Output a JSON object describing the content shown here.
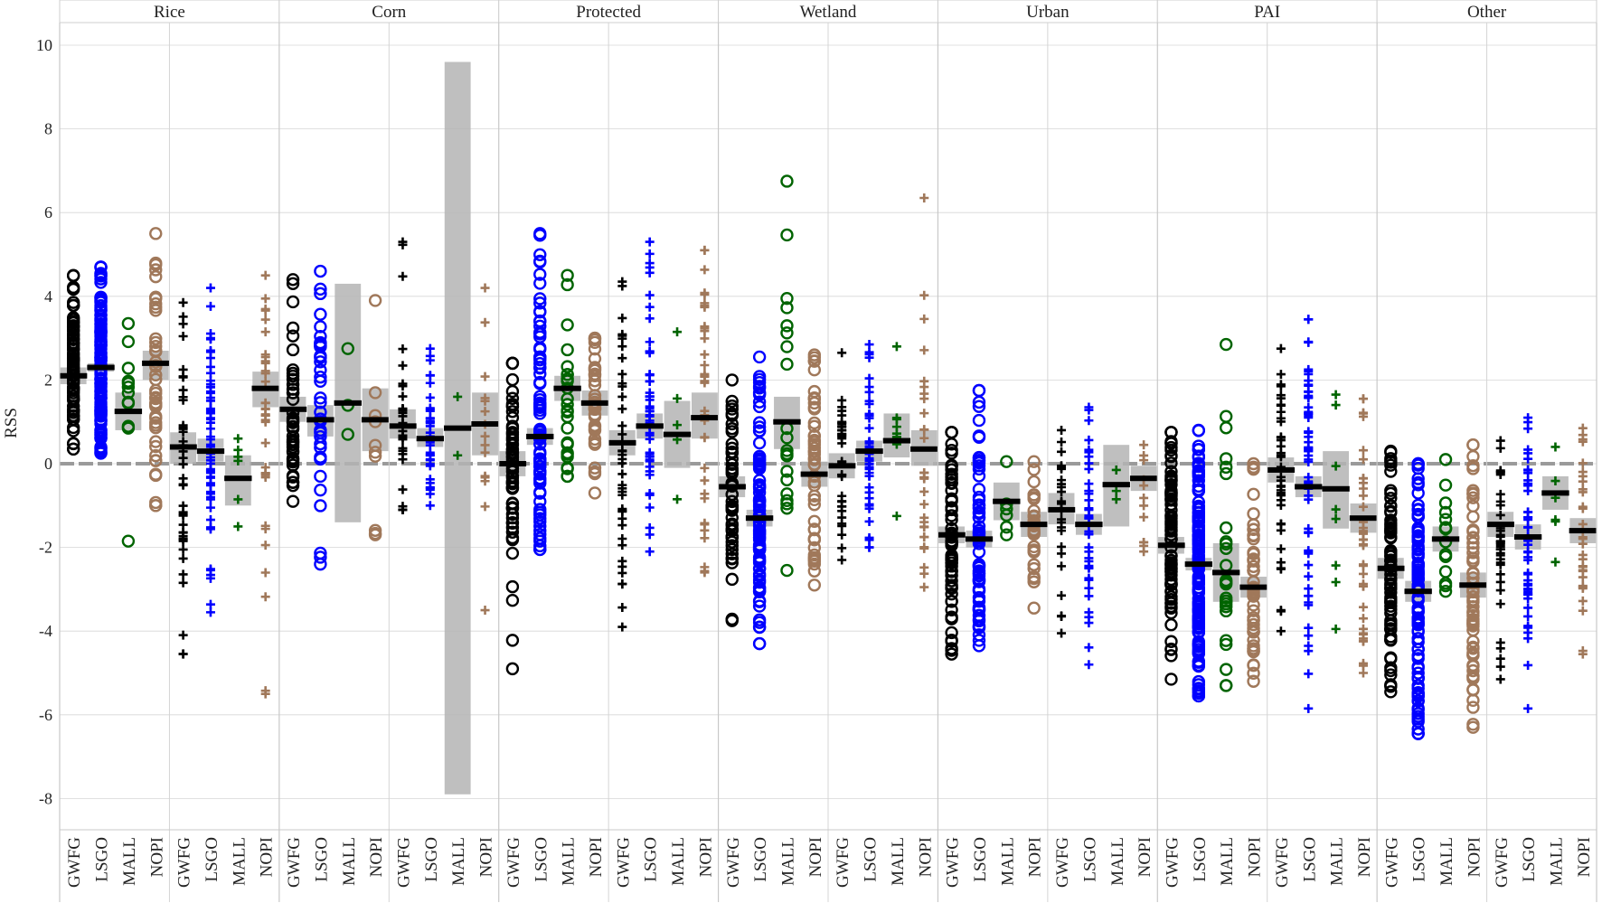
{
  "chart_data": {
    "type": "dot-strip",
    "title": "",
    "ylabel": "RSS",
    "xlabel": "",
    "ylim": [
      -8.7,
      10.3
    ],
    "yticks": [
      -8,
      -6,
      -4,
      -2,
      0,
      2,
      4,
      6,
      8,
      10
    ],
    "panels": [
      "Rice",
      "Corn",
      "Protected",
      "Wetland",
      "Urban",
      "PAI",
      "Other"
    ],
    "species": [
      "GWFG",
      "LSGO",
      "MALL",
      "NOPI"
    ],
    "marker_groups": [
      "circle",
      "plus"
    ],
    "legend": "none",
    "colors": {
      "GWFG": "#000000",
      "LSGO": "#0000ff",
      "MALL": "#006400",
      "NOPI": "#a0785a",
      "ci_band": "#b4b4b4",
      "zero_line": "#9a9a9a",
      "grid": "#d6d6d6"
    },
    "series": [
      {
        "panel": "Rice",
        "marker": "circle",
        "species": "GWFG",
        "mean": 2.1,
        "ci": [
          1.9,
          2.3
        ],
        "min": 0.35,
        "max": 4.5,
        "n": 70
      },
      {
        "panel": "Rice",
        "marker": "circle",
        "species": "LSGO",
        "mean": 2.3,
        "ci": [
          2.2,
          2.4
        ],
        "min": 0.25,
        "max": 4.7,
        "n": 110
      },
      {
        "panel": "Rice",
        "marker": "circle",
        "species": "MALL",
        "mean": 1.25,
        "ci": [
          0.8,
          1.7
        ],
        "min": -1.85,
        "max": 3.35,
        "n": 12
      },
      {
        "panel": "Rice",
        "marker": "circle",
        "species": "NOPI",
        "mean": 2.4,
        "ci": [
          2.0,
          2.7
        ],
        "min": -1.0,
        "max": 5.5,
        "n": 45
      },
      {
        "panel": "Rice",
        "marker": "plus",
        "species": "GWFG",
        "mean": 0.4,
        "ci": [
          0.0,
          0.75
        ],
        "min": -4.55,
        "max": 3.85,
        "n": 40
      },
      {
        "panel": "Rice",
        "marker": "plus",
        "species": "LSGO",
        "mean": 0.3,
        "ci": [
          0.05,
          0.6
        ],
        "min": -3.55,
        "max": 4.2,
        "n": 60
      },
      {
        "panel": "Rice",
        "marker": "plus",
        "species": "MALL",
        "mean": -0.35,
        "ci": [
          -1.0,
          0.2
        ],
        "min": -1.5,
        "max": 0.6,
        "n": 6
      },
      {
        "panel": "Rice",
        "marker": "plus",
        "species": "NOPI",
        "mean": 1.8,
        "ci": [
          1.35,
          2.2
        ],
        "min": -5.5,
        "max": 4.5,
        "n": 35
      },
      {
        "panel": "Corn",
        "marker": "circle",
        "species": "GWFG",
        "mean": 1.3,
        "ci": [
          1.0,
          1.6
        ],
        "min": -0.9,
        "max": 4.4,
        "n": 40
      },
      {
        "panel": "Corn",
        "marker": "circle",
        "species": "LSGO",
        "mean": 1.05,
        "ci": [
          0.65,
          1.4
        ],
        "min": -2.4,
        "max": 4.6,
        "n": 35
      },
      {
        "panel": "Corn",
        "marker": "circle",
        "species": "MALL",
        "mean": 1.45,
        "ci": [
          -1.4,
          4.3
        ],
        "min": 0.7,
        "max": 2.75,
        "n": 3
      },
      {
        "panel": "Corn",
        "marker": "circle",
        "species": "NOPI",
        "mean": 1.05,
        "ci": [
          0.3,
          1.8
        ],
        "min": -1.7,
        "max": 3.9,
        "n": 10
      },
      {
        "panel": "Corn",
        "marker": "plus",
        "species": "GWFG",
        "mean": 0.9,
        "ci": [
          0.6,
          1.3
        ],
        "min": -1.1,
        "max": 5.3,
        "n": 30
      },
      {
        "panel": "Corn",
        "marker": "plus",
        "species": "LSGO",
        "mean": 0.6,
        "ci": [
          0.4,
          0.85
        ],
        "min": -1.0,
        "max": 2.75,
        "n": 35
      },
      {
        "panel": "Corn",
        "marker": "plus",
        "species": "MALL",
        "mean": 0.85,
        "ci": [
          -7.9,
          9.6
        ],
        "min": 0.2,
        "max": 1.6,
        "n": 2
      },
      {
        "panel": "Corn",
        "marker": "plus",
        "species": "NOPI",
        "mean": 0.95,
        "ci": [
          0.2,
          1.7
        ],
        "min": -3.5,
        "max": 4.2,
        "n": 15
      },
      {
        "panel": "Protected",
        "marker": "circle",
        "species": "GWFG",
        "mean": 0.0,
        "ci": [
          -0.3,
          0.3
        ],
        "min": -4.9,
        "max": 2.4,
        "n": 60
      },
      {
        "panel": "Protected",
        "marker": "circle",
        "species": "LSGO",
        "mean": 0.65,
        "ci": [
          0.45,
          0.85
        ],
        "min": -2.05,
        "max": 5.5,
        "n": 80
      },
      {
        "panel": "Protected",
        "marker": "circle",
        "species": "MALL",
        "mean": 1.8,
        "ci": [
          1.5,
          2.1
        ],
        "min": -0.3,
        "max": 4.5,
        "n": 25
      },
      {
        "panel": "Protected",
        "marker": "circle",
        "species": "NOPI",
        "mean": 1.45,
        "ci": [
          1.15,
          1.75
        ],
        "min": -0.7,
        "max": 3.0,
        "n": 40
      },
      {
        "panel": "Protected",
        "marker": "plus",
        "species": "GWFG",
        "mean": 0.5,
        "ci": [
          0.2,
          0.8
        ],
        "min": -3.9,
        "max": 4.35,
        "n": 40
      },
      {
        "panel": "Protected",
        "marker": "plus",
        "species": "LSGO",
        "mean": 0.9,
        "ci": [
          0.6,
          1.2
        ],
        "min": -2.1,
        "max": 5.3,
        "n": 50
      },
      {
        "panel": "Protected",
        "marker": "plus",
        "species": "MALL",
        "mean": 0.7,
        "ci": [
          -0.1,
          1.5
        ],
        "min": -0.85,
        "max": 3.15,
        "n": 5
      },
      {
        "panel": "Protected",
        "marker": "plus",
        "species": "NOPI",
        "mean": 1.1,
        "ci": [
          0.6,
          1.7
        ],
        "min": -2.6,
        "max": 5.1,
        "n": 35
      },
      {
        "panel": "Wetland",
        "marker": "circle",
        "species": "GWFG",
        "mean": -0.55,
        "ci": [
          -0.8,
          -0.3
        ],
        "min": -3.75,
        "max": 2.0,
        "n": 55
      },
      {
        "panel": "Wetland",
        "marker": "circle",
        "species": "LSGO",
        "mean": -1.3,
        "ci": [
          -1.5,
          -1.1
        ],
        "min": -4.3,
        "max": 2.55,
        "n": 90
      },
      {
        "panel": "Wetland",
        "marker": "circle",
        "species": "MALL",
        "mean": 1.0,
        "ci": [
          0.35,
          1.6
        ],
        "min": -2.55,
        "max": 6.75,
        "n": 20
      },
      {
        "panel": "Wetland",
        "marker": "circle",
        "species": "NOPI",
        "mean": -0.25,
        "ci": [
          -0.55,
          0.05
        ],
        "min": -2.9,
        "max": 2.6,
        "n": 50
      },
      {
        "panel": "Wetland",
        "marker": "plus",
        "species": "GWFG",
        "mean": -0.05,
        "ci": [
          -0.35,
          0.25
        ],
        "min": -2.3,
        "max": 2.65,
        "n": 35
      },
      {
        "panel": "Wetland",
        "marker": "plus",
        "species": "LSGO",
        "mean": 0.3,
        "ci": [
          0.05,
          0.55
        ],
        "min": -2.0,
        "max": 2.85,
        "n": 45
      },
      {
        "panel": "Wetland",
        "marker": "plus",
        "species": "MALL",
        "mean": 0.55,
        "ci": [
          0.15,
          1.2
        ],
        "min": -1.25,
        "max": 2.8,
        "n": 8
      },
      {
        "panel": "Wetland",
        "marker": "plus",
        "species": "NOPI",
        "mean": 0.35,
        "ci": [
          -0.05,
          0.8
        ],
        "min": -2.95,
        "max": 6.35,
        "n": 30
      },
      {
        "panel": "Urban",
        "marker": "circle",
        "species": "GWFG",
        "mean": -1.7,
        "ci": [
          -1.9,
          -1.5
        ],
        "min": -4.55,
        "max": 0.75,
        "n": 60
      },
      {
        "panel": "Urban",
        "marker": "circle",
        "species": "LSGO",
        "mean": -1.8,
        "ci": [
          -2.0,
          -1.6
        ],
        "min": -4.35,
        "max": 1.75,
        "n": 70
      },
      {
        "panel": "Urban",
        "marker": "circle",
        "species": "MALL",
        "mean": -0.9,
        "ci": [
          -1.35,
          -0.45
        ],
        "min": -1.7,
        "max": 0.05,
        "n": 6
      },
      {
        "panel": "Urban",
        "marker": "circle",
        "species": "NOPI",
        "mean": -1.45,
        "ci": [
          -1.75,
          -1.15
        ],
        "min": -3.45,
        "max": 0.05,
        "n": 30
      },
      {
        "panel": "Urban",
        "marker": "plus",
        "species": "GWFG",
        "mean": -1.1,
        "ci": [
          -1.45,
          -0.7
        ],
        "min": -4.05,
        "max": 0.8,
        "n": 25
      },
      {
        "panel": "Urban",
        "marker": "plus",
        "species": "LSGO",
        "mean": -1.45,
        "ci": [
          -1.7,
          -1.2
        ],
        "min": -4.8,
        "max": 1.35,
        "n": 40
      },
      {
        "panel": "Urban",
        "marker": "plus",
        "species": "MALL",
        "mean": -0.5,
        "ci": [
          -1.5,
          0.45
        ],
        "min": -0.85,
        "max": -0.15,
        "n": 3
      },
      {
        "panel": "Urban",
        "marker": "plus",
        "species": "NOPI",
        "mean": -0.35,
        "ci": [
          -0.65,
          -0.05
        ],
        "min": -2.1,
        "max": 0.45,
        "n": 12
      },
      {
        "panel": "PAI",
        "marker": "circle",
        "species": "GWFG",
        "mean": -1.95,
        "ci": [
          -2.15,
          -1.75
        ],
        "min": -5.15,
        "max": 0.75,
        "n": 80
      },
      {
        "panel": "PAI",
        "marker": "circle",
        "species": "LSGO",
        "mean": -2.4,
        "ci": [
          -2.55,
          -2.25
        ],
        "min": -5.55,
        "max": 0.8,
        "n": 130
      },
      {
        "panel": "PAI",
        "marker": "circle",
        "species": "MALL",
        "mean": -2.6,
        "ci": [
          -3.3,
          -1.9
        ],
        "min": -5.3,
        "max": 2.85,
        "n": 25
      },
      {
        "panel": "PAI",
        "marker": "circle",
        "species": "NOPI",
        "mean": -2.95,
        "ci": [
          -3.2,
          -2.7
        ],
        "min": -5.2,
        "max": 0.0,
        "n": 50
      },
      {
        "panel": "PAI",
        "marker": "plus",
        "species": "GWFG",
        "mean": -0.15,
        "ci": [
          -0.45,
          0.15
        ],
        "min": -4.0,
        "max": 2.75,
        "n": 40
      },
      {
        "panel": "PAI",
        "marker": "plus",
        "species": "LSGO",
        "mean": -0.55,
        "ci": [
          -0.8,
          -0.3
        ],
        "min": -5.85,
        "max": 3.45,
        "n": 60
      },
      {
        "panel": "PAI",
        "marker": "plus",
        "species": "MALL",
        "mean": -0.6,
        "ci": [
          -1.55,
          0.3
        ],
        "min": -3.95,
        "max": 1.65,
        "n": 8
      },
      {
        "panel": "PAI",
        "marker": "plus",
        "species": "NOPI",
        "mean": -1.3,
        "ci": [
          -1.65,
          -0.95
        ],
        "min": -5.0,
        "max": 1.55,
        "n": 40
      },
      {
        "panel": "Other",
        "marker": "circle",
        "species": "GWFG",
        "mean": -2.5,
        "ci": [
          -2.75,
          -2.25
        ],
        "min": -5.45,
        "max": 0.3,
        "n": 70
      },
      {
        "panel": "Other",
        "marker": "circle",
        "species": "LSGO",
        "mean": -3.05,
        "ci": [
          -3.3,
          -2.8
        ],
        "min": -6.45,
        "max": 0.0,
        "n": 100
      },
      {
        "panel": "Other",
        "marker": "circle",
        "species": "MALL",
        "mean": -1.8,
        "ci": [
          -2.1,
          -1.5
        ],
        "min": -3.05,
        "max": 0.1,
        "n": 15
      },
      {
        "panel": "Other",
        "marker": "circle",
        "species": "NOPI",
        "mean": -2.9,
        "ci": [
          -3.2,
          -2.6
        ],
        "min": -6.3,
        "max": 0.45,
        "n": 60
      },
      {
        "panel": "Other",
        "marker": "plus",
        "species": "GWFG",
        "mean": -1.45,
        "ci": [
          -1.75,
          -1.15
        ],
        "min": -5.15,
        "max": 0.55,
        "n": 35
      },
      {
        "panel": "Other",
        "marker": "plus",
        "species": "LSGO",
        "mean": -1.75,
        "ci": [
          -2.05,
          -1.45
        ],
        "min": -5.85,
        "max": 1.1,
        "n": 50
      },
      {
        "panel": "Other",
        "marker": "plus",
        "species": "MALL",
        "mean": -0.7,
        "ci": [
          -1.1,
          -0.3
        ],
        "min": -2.35,
        "max": 0.4,
        "n": 6
      },
      {
        "panel": "Other",
        "marker": "plus",
        "species": "NOPI",
        "mean": -1.6,
        "ci": [
          -1.9,
          -1.3
        ],
        "min": -4.55,
        "max": 0.85,
        "n": 30
      }
    ]
  }
}
